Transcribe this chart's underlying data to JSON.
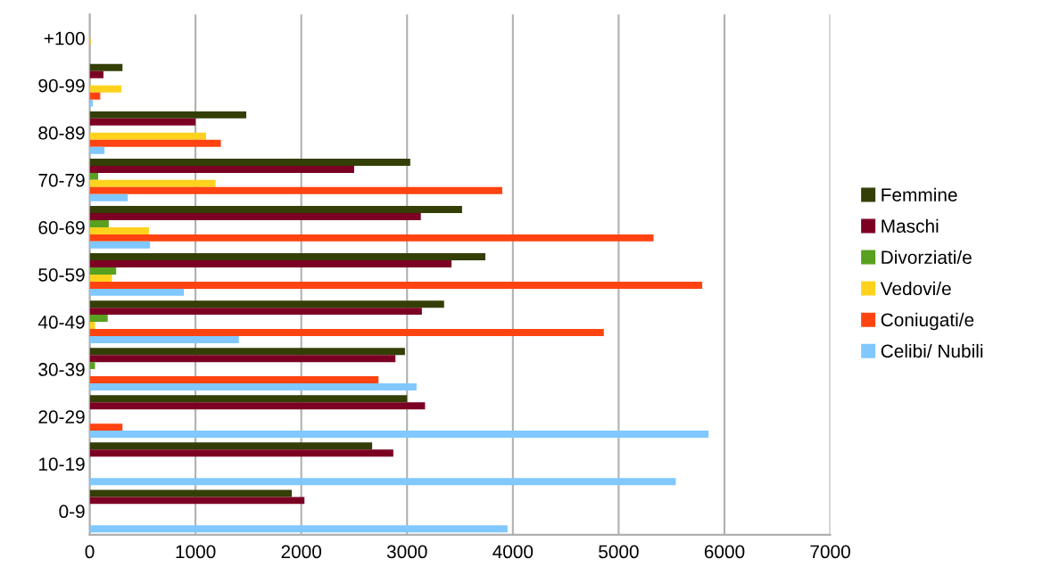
{
  "chart_data": {
    "type": "bar",
    "orientation": "horizontal",
    "categories": [
      "+100",
      "90-99",
      "80-89",
      "70-79",
      "60-69",
      "50-59",
      "40-49",
      "30-39",
      "20-29",
      "10-19",
      "0-9"
    ],
    "series": [
      {
        "name": "Femmine",
        "color": "#333f06",
        "values": [
          0,
          310,
          1480,
          3030,
          3520,
          3740,
          3350,
          2980,
          3000,
          2670,
          1910
        ]
      },
      {
        "name": "Maschi",
        "color": "#7b0024",
        "values": [
          0,
          130,
          1000,
          2500,
          3130,
          3420,
          3140,
          2890,
          3170,
          2870,
          2030
        ]
      },
      {
        "name": "Divorziati/e",
        "color": "#57a020",
        "values": [
          0,
          0,
          0,
          80,
          180,
          250,
          170,
          50,
          0,
          0,
          0
        ]
      },
      {
        "name": "Vedovi/e",
        "color": "#ffd21e",
        "values": [
          10,
          300,
          1100,
          1190,
          560,
          210,
          50,
          0,
          0,
          0,
          0
        ]
      },
      {
        "name": "Coniugati/e",
        "color": "#ff4411",
        "values": [
          0,
          100,
          1240,
          3900,
          5330,
          5790,
          4860,
          2730,
          310,
          0,
          0
        ]
      },
      {
        "name": "Celibi/ Nubili",
        "color": "#80c8ff",
        "values": [
          0,
          30,
          140,
          360,
          570,
          890,
          1410,
          3090,
          5850,
          5540,
          3950
        ]
      }
    ],
    "xlim": [
      0,
      7000
    ],
    "xticks": [
      0,
      1000,
      2000,
      3000,
      4000,
      5000,
      6000,
      7000
    ],
    "grid": "x",
    "legend": "right"
  }
}
